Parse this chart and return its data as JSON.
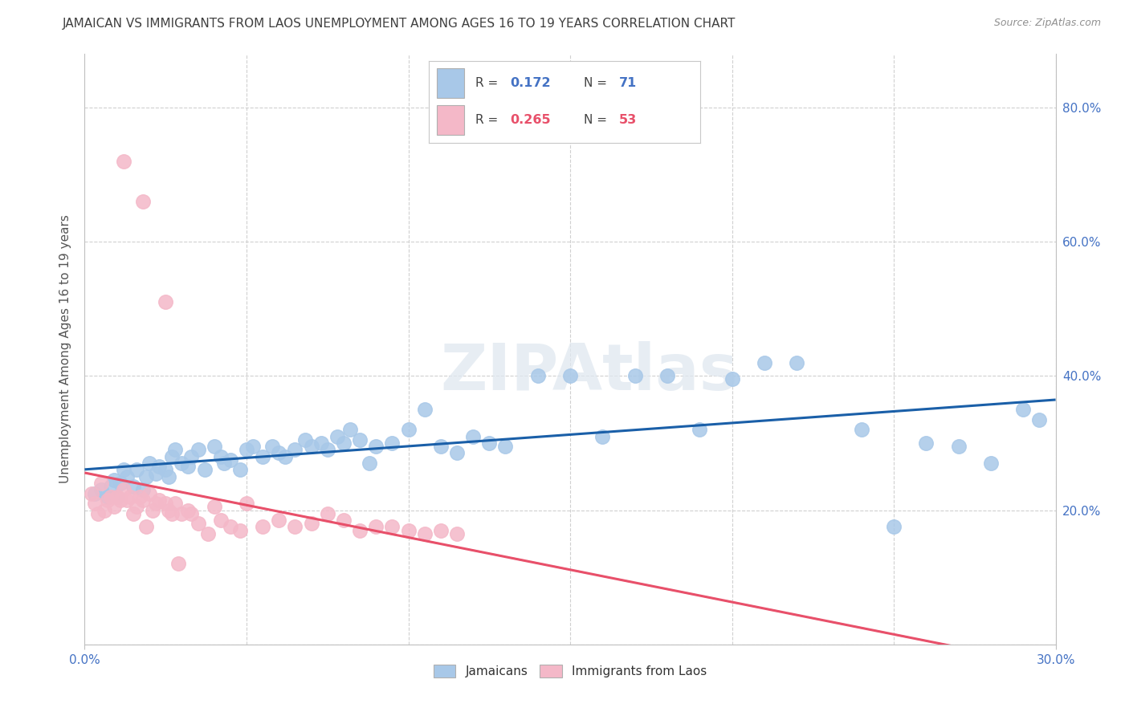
{
  "title": "JAMAICAN VS IMMIGRANTS FROM LAOS UNEMPLOYMENT AMONG AGES 16 TO 19 YEARS CORRELATION CHART",
  "source": "Source: ZipAtlas.com",
  "ylabel": "Unemployment Among Ages 16 to 19 years",
  "yticks": [
    0.0,
    0.2,
    0.4,
    0.6,
    0.8
  ],
  "ytick_labels": [
    "",
    "20.0%",
    "40.0%",
    "60.0%",
    "80.0%"
  ],
  "xmin": 0.0,
  "xmax": 0.3,
  "ymin": 0.0,
  "ymax": 0.88,
  "blue_color": "#a8c8e8",
  "pink_color": "#f4b8c8",
  "blue_line_color": "#1a5fa8",
  "pink_line_color": "#e8506a",
  "pink_dash_color": "#e8a0b0",
  "watermark": "ZIPAtlas",
  "jamaicans_label": "Jamaicans",
  "laos_label": "Immigrants from Laos",
  "blue_R": "0.172",
  "blue_N": "71",
  "pink_R": "0.265",
  "pink_N": "53",
  "legend_val_color_blue": "#4472c4",
  "legend_val_color_pink": "#e8506a",
  "axis_label_color": "#4472c4",
  "title_color": "#404040",
  "source_color": "#909090",
  "grid_color": "#d0d0d0",
  "spine_color": "#c0c0c0",
  "blue_x": [
    0.003,
    0.005,
    0.007,
    0.008,
    0.009,
    0.01,
    0.011,
    0.012,
    0.013,
    0.015,
    0.016,
    0.018,
    0.019,
    0.02,
    0.022,
    0.023,
    0.025,
    0.026,
    0.027,
    0.028,
    0.03,
    0.032,
    0.033,
    0.035,
    0.037,
    0.04,
    0.042,
    0.043,
    0.045,
    0.048,
    0.05,
    0.052,
    0.055,
    0.058,
    0.06,
    0.062,
    0.065,
    0.068,
    0.07,
    0.073,
    0.075,
    0.078,
    0.08,
    0.082,
    0.085,
    0.088,
    0.09,
    0.095,
    0.1,
    0.105,
    0.11,
    0.115,
    0.12,
    0.125,
    0.13,
    0.14,
    0.15,
    0.16,
    0.17,
    0.18,
    0.19,
    0.2,
    0.21,
    0.22,
    0.24,
    0.25,
    0.26,
    0.27,
    0.28,
    0.29,
    0.295
  ],
  "blue_y": [
    0.225,
    0.23,
    0.22,
    0.235,
    0.245,
    0.22,
    0.24,
    0.26,
    0.25,
    0.235,
    0.26,
    0.23,
    0.25,
    0.27,
    0.255,
    0.265,
    0.26,
    0.25,
    0.28,
    0.29,
    0.27,
    0.265,
    0.28,
    0.29,
    0.26,
    0.295,
    0.28,
    0.27,
    0.275,
    0.26,
    0.29,
    0.295,
    0.28,
    0.295,
    0.285,
    0.28,
    0.29,
    0.305,
    0.295,
    0.3,
    0.29,
    0.31,
    0.3,
    0.32,
    0.305,
    0.27,
    0.295,
    0.3,
    0.32,
    0.35,
    0.295,
    0.285,
    0.31,
    0.3,
    0.295,
    0.4,
    0.4,
    0.31,
    0.4,
    0.4,
    0.32,
    0.395,
    0.42,
    0.42,
    0.32,
    0.175,
    0.3,
    0.295,
    0.27,
    0.35,
    0.335
  ],
  "pink_x": [
    0.002,
    0.003,
    0.004,
    0.005,
    0.006,
    0.007,
    0.008,
    0.009,
    0.01,
    0.011,
    0.012,
    0.013,
    0.014,
    0.015,
    0.016,
    0.017,
    0.018,
    0.019,
    0.02,
    0.021,
    0.022,
    0.023,
    0.025,
    0.026,
    0.027,
    0.028,
    0.029,
    0.03,
    0.032,
    0.033,
    0.035,
    0.038,
    0.04,
    0.042,
    0.045,
    0.048,
    0.05,
    0.055,
    0.06,
    0.065,
    0.07,
    0.075,
    0.08,
    0.085,
    0.09,
    0.095,
    0.1,
    0.105,
    0.11,
    0.115,
    0.012,
    0.018,
    0.025
  ],
  "pink_y": [
    0.225,
    0.21,
    0.195,
    0.24,
    0.2,
    0.215,
    0.22,
    0.205,
    0.22,
    0.215,
    0.23,
    0.215,
    0.22,
    0.195,
    0.205,
    0.22,
    0.215,
    0.175,
    0.225,
    0.2,
    0.21,
    0.215,
    0.21,
    0.2,
    0.195,
    0.21,
    0.12,
    0.195,
    0.2,
    0.195,
    0.18,
    0.165,
    0.205,
    0.185,
    0.175,
    0.17,
    0.21,
    0.175,
    0.185,
    0.175,
    0.18,
    0.195,
    0.185,
    0.17,
    0.175,
    0.175,
    0.17,
    0.165,
    0.17,
    0.165,
    0.72,
    0.66,
    0.51
  ]
}
